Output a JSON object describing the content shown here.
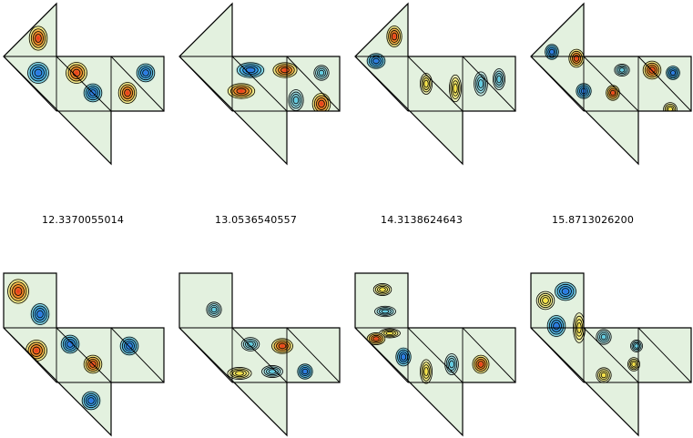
{
  "eigenvalue_labels": [
    "12.3370055014",
    "13.0536540557",
    "14.3138624643",
    "15.8713026200"
  ],
  "colors": {
    "background": "#ffffff",
    "domain_fill": "#e3f1df",
    "outline": "#000000",
    "red": "#e8321a",
    "orange": "#f39a2a",
    "yellow": "#f2ec88",
    "cyan": "#7cd3e3",
    "blue": "#2a6fe0"
  }
}
